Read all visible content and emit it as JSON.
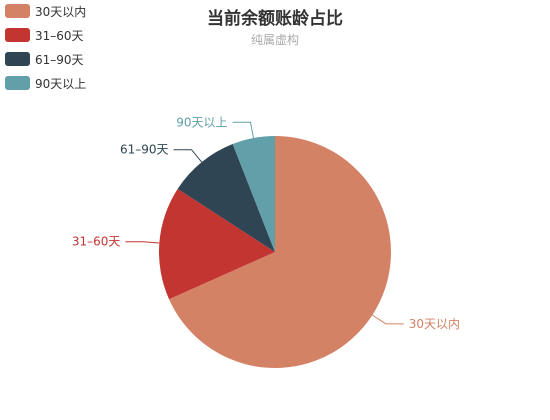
{
  "chart_data": {
    "type": "pie",
    "title": "当前余额账龄占比",
    "subtitle": "纯属虚构",
    "legend_position": "top-left",
    "series": [
      {
        "name": "30天以内",
        "value": 69,
        "color": "#d48265"
      },
      {
        "name": "31–60天",
        "value": 16,
        "color": "#c23531"
      },
      {
        "name": "61–90天",
        "value": 10,
        "color": "#2f4554"
      },
      {
        "name": "90天以上",
        "value": 6,
        "color": "#61a0a8"
      }
    ],
    "start_angle_deg": 90,
    "clockwise": true
  }
}
